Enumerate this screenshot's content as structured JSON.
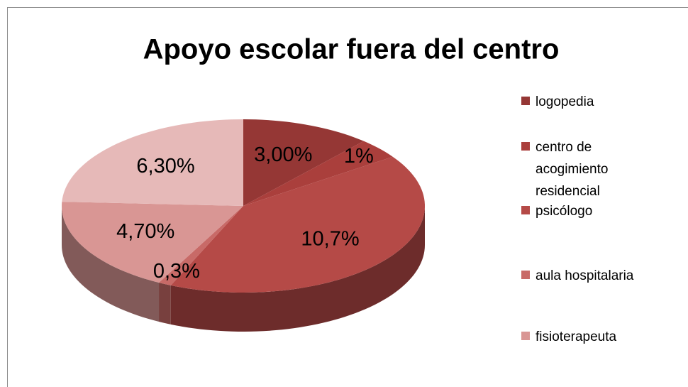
{
  "chart_data": {
    "type": "pie",
    "title": "Apoyo escolar fuera del centro",
    "categories": [
      "logopedia",
      "centro de acogimiento residencial",
      "psicólogo",
      "aula hospitalaria",
      "fisioterapeuta",
      null
    ],
    "values": [
      3.0,
      1,
      10.7,
      0.3,
      4.7,
      6.3
    ],
    "value_labels": [
      "3,00%",
      "1%",
      "10,7%",
      "0,3%",
      "4,70%",
      "6,30%"
    ],
    "colors": [
      "#953735",
      "#aa3f3c",
      "#b54a47",
      "#c86a67",
      "#d99694",
      "#e6b9b8"
    ],
    "legend": "right"
  }
}
